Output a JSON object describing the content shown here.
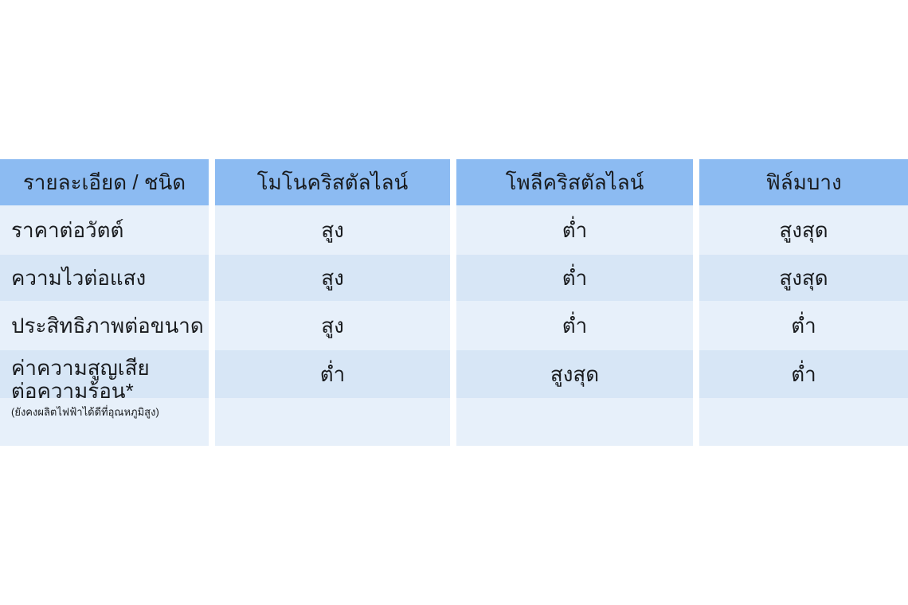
{
  "table": {
    "header": [
      "รายละเอียด / ชนิด",
      "โมโนคริสตัลไลน์",
      "โพลีคริสตัลไลน์",
      "ฟิล์มบาง"
    ],
    "rows": [
      {
        "label": "ราคาต่อวัตต์",
        "values": [
          "สูง",
          "ต่ำ",
          "สูงสุด"
        ]
      },
      {
        "label": "ความไวต่อแสง",
        "values": [
          "สูง",
          "ต่ำ",
          "สูงสุด"
        ]
      },
      {
        "label": "ประสิทธิภาพต่อขนาด",
        "values": [
          "สูง",
          "ต่ำ",
          "ต่ำ"
        ]
      },
      {
        "label_line1": "ค่าความสูญเสีย",
        "label_line2": "ต่อความร้อน*",
        "note": "(ยังคงผลิตไฟฟ้าได้ดีที่อุณหภูมิสูง)",
        "values": [
          "ต่ำ",
          "สูงสุด",
          "ต่ำ"
        ]
      },
      {
        "label": "",
        "values": [
          "",
          "",
          ""
        ]
      }
    ],
    "colors": {
      "header_bg": "#8cbbf2",
      "row_light_bg": "#e7f0fa",
      "row_dark_bg": "#d7e6f6",
      "text": "#191b1e",
      "page_bg": "#ffffff"
    }
  }
}
